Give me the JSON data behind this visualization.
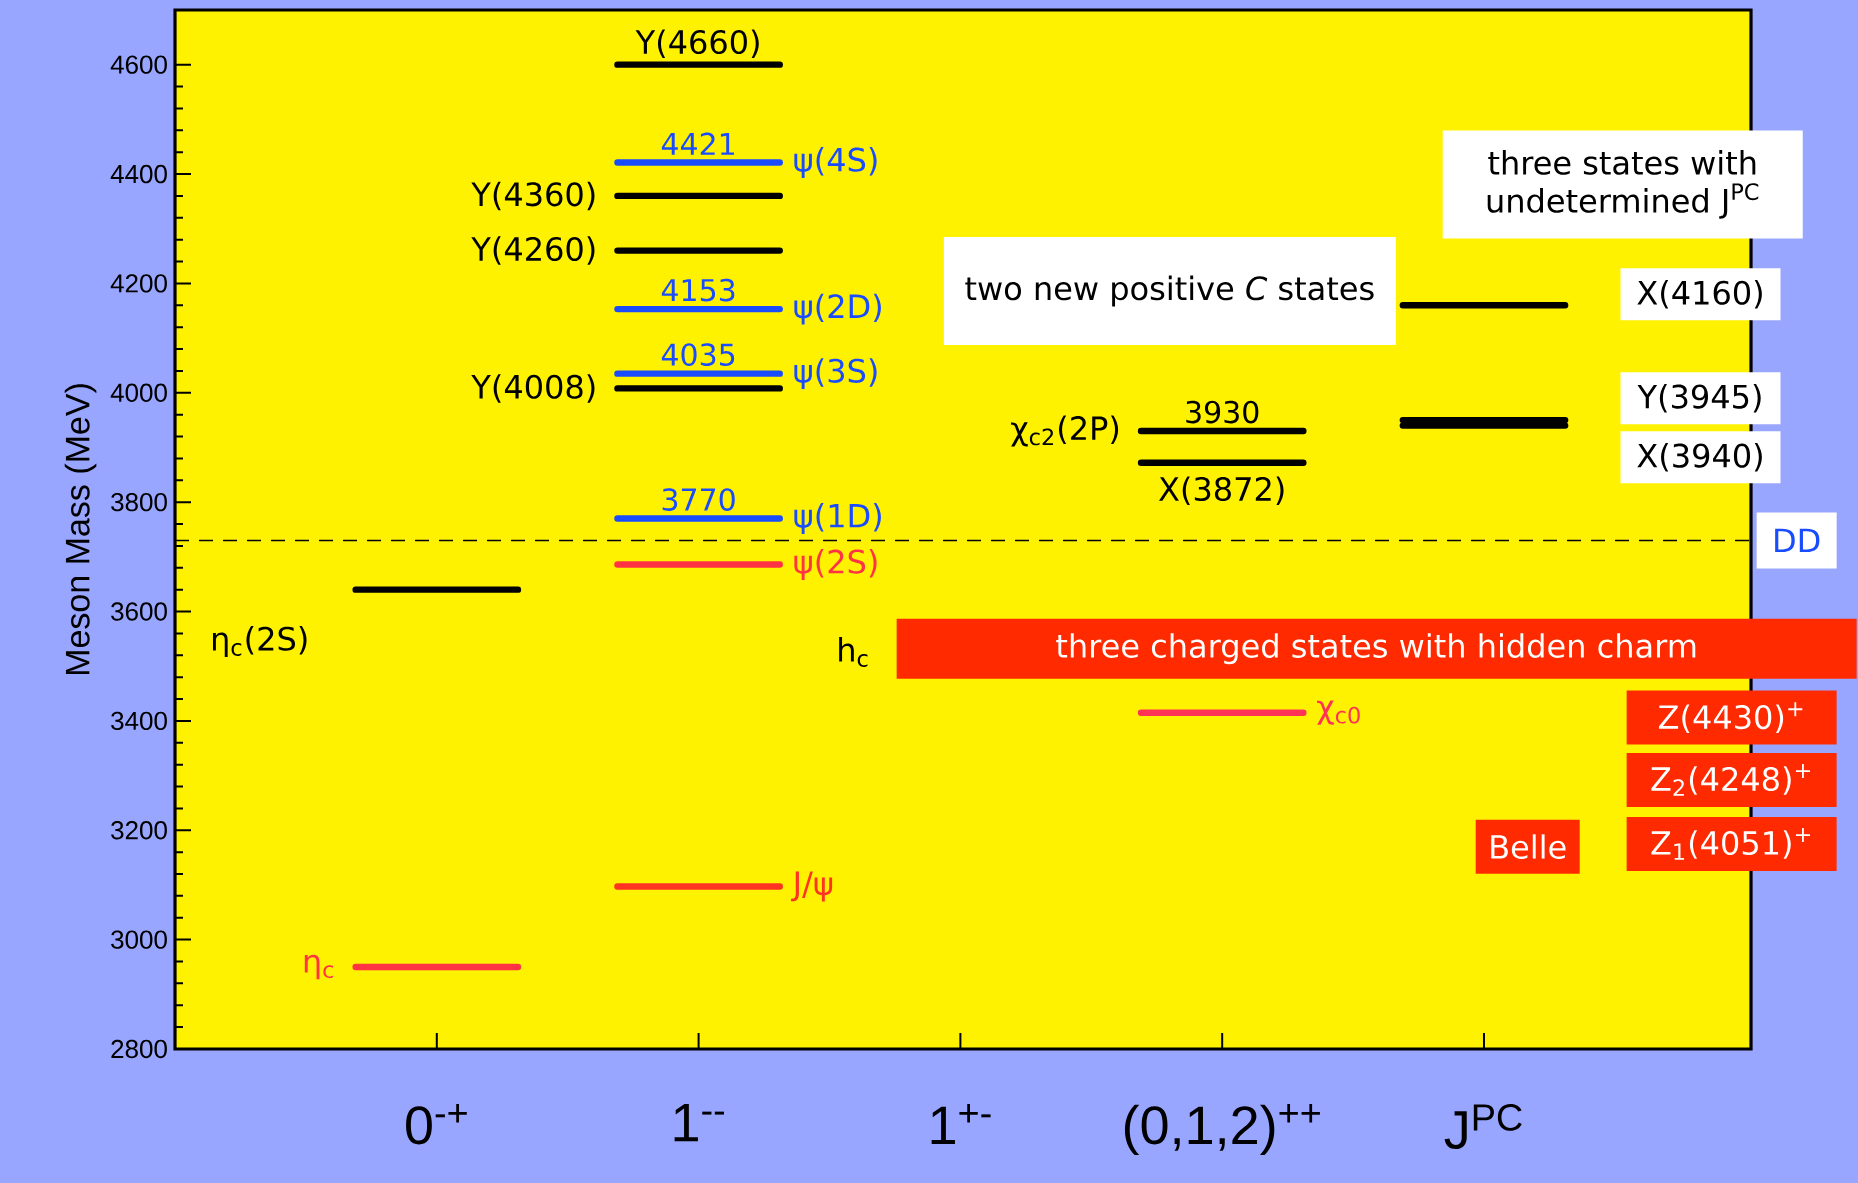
{
  "chart_data": {
    "type": "bar",
    "ylabel": "Meson Mass (MeV)",
    "ylim": [
      2800,
      4700
    ],
    "categories": [
      "0$^{-+}$",
      "1$^{--}$",
      "1$^{+-}$",
      "(0,1,2)$^{++}$",
      "J$^{PC}$"
    ],
    "yticks": [
      2800,
      3000,
      3200,
      3400,
      3600,
      3800,
      4000,
      4200,
      4400,
      4600
    ],
    "grid": false,
    "series": [
      {
        "name": "η$_{c}$",
        "color": "#ff3344",
        "base": [
          2950,
          null,
          null,
          null,
          null
        ],
        "values": [
          0,
          null,
          null,
          null,
          null
        ]
      },
      {
        "name": "η$_{c}$(2S)",
        "color": "#000000",
        "base": [
          3640,
          null,
          null,
          null,
          null
        ],
        "values": [
          0,
          null,
          null,
          null,
          null
        ]
      },
      {
        "name": "J/ψ",
        "color": "#ff3322",
        "base": [
          null,
          3097,
          null,
          null,
          null
        ],
        "values": [
          null,
          0,
          null,
          null,
          null
        ]
      },
      {
        "name": "ψ(2S)",
        "color": "#ff3344",
        "base": [
          null,
          3686,
          null,
          null,
          null
        ],
        "values": [
          null,
          0,
          null,
          null,
          null
        ]
      },
      {
        "name": "ψ(1D)",
        "color": "#1a4cff",
        "base": [
          null,
          3770,
          null,
          null,
          null
        ],
        "values": [
          null,
          0,
          null,
          null,
          null
        ],
        "value_labels": [
          null,
          "3770",
          null,
          null,
          null
        ]
      },
      {
        "name": "Y(4008)",
        "color": "#000000",
        "base": [
          null,
          4008,
          null,
          null,
          null
        ],
        "values": [
          null,
          0,
          null,
          null,
          null
        ]
      },
      {
        "name": "ψ(3S)",
        "color": "#1a4cff",
        "base": [
          null,
          4035,
          null,
          null,
          null
        ],
        "values": [
          null,
          0,
          null,
          null,
          null
        ],
        "value_labels": [
          null,
          "4035",
          null,
          null,
          null
        ]
      },
      {
        "name": "ψ(2D)",
        "color": "#1a4cff",
        "base": [
          null,
          4153,
          null,
          null,
          null
        ],
        "values": [
          null,
          0,
          null,
          null,
          null
        ],
        "value_labels": [
          null,
          "4153",
          null,
          null,
          null
        ]
      },
      {
        "name": "Y(4260)",
        "color": "#000000",
        "base": [
          null,
          4260,
          null,
          null,
          null
        ],
        "values": [
          null,
          0,
          null,
          null,
          null
        ]
      },
      {
        "name": "Y(4360)",
        "color": "#000000",
        "base": [
          null,
          4360,
          null,
          null,
          null
        ],
        "values": [
          null,
          0,
          null,
          null,
          null
        ]
      },
      {
        "name": "ψ(4S)",
        "color": "#1a4cff",
        "base": [
          null,
          4421,
          null,
          null,
          null
        ],
        "values": [
          null,
          0,
          null,
          null,
          null
        ],
        "value_labels": [
          null,
          "4421",
          null,
          null,
          null
        ]
      },
      {
        "name": "Y(4660)",
        "color": "#000000",
        "base": [
          null,
          4600,
          null,
          null,
          null
        ],
        "values": [
          null,
          0,
          null,
          null,
          null
        ]
      },
      {
        "name": "χ$_{c2}$(2P)",
        "color": "#000000",
        "base": [
          null,
          null,
          null,
          3930,
          null
        ],
        "values": [
          null,
          null,
          null,
          0,
          null
        ],
        "value_labels": [
          null,
          null,
          null,
          "3930",
          null
        ]
      },
      {
        "name": "X(3872)",
        "color": "#000000",
        "base": [
          null,
          null,
          null,
          3872,
          null
        ],
        "values": [
          null,
          null,
          null,
          0,
          null
        ]
      },
      {
        "name": "χ$_{c0}$",
        "color": "#ff3355",
        "base": [
          null,
          null,
          null,
          3415,
          null
        ],
        "values": [
          null,
          null,
          null,
          0,
          null
        ]
      },
      {
        "name": "X(4160)",
        "color": "#000000",
        "base": [
          null,
          null,
          null,
          null,
          4160
        ],
        "values": [
          null,
          null,
          null,
          null,
          0
        ]
      },
      {
        "name": "Y(3945)",
        "color": "#000000",
        "base": [
          null,
          null,
          null,
          null,
          3950
        ],
        "values": [
          null,
          null,
          null,
          null,
          0
        ]
      },
      {
        "name": "X(3940)",
        "color": "#000000",
        "base": [
          null,
          null,
          null,
          null,
          3940
        ],
        "values": [
          null,
          null,
          null,
          null,
          0
        ]
      }
    ],
    "ref_lines": [
      {
        "axis": "y",
        "value": 3730,
        "label": "DD",
        "color": "#000000",
        "line_style": "dashed"
      }
    ],
    "annotations": [
      "two new positive *C* states",
      "three states with undetermined J$^{PC}$",
      "three charged states with hidden charm",
      "Z(4430)$^{+}$",
      "Z$_{2}$(4248)$^{+}$",
      "Z$_{1}$(4051)$^{+}$",
      "Belle",
      "h$_{c}$"
    ]
  }
}
